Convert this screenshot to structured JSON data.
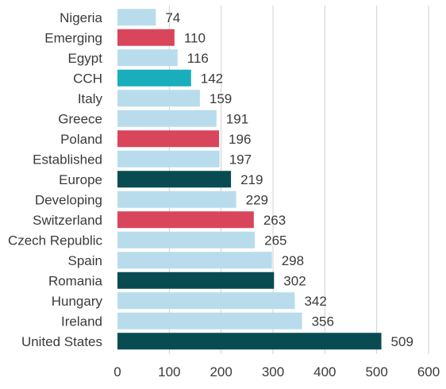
{
  "chart_data": {
    "type": "bar",
    "orientation": "horizontal",
    "categories": [
      "Nigeria",
      "Emerging",
      "Egypt",
      "CCH",
      "Italy",
      "Greece",
      "Poland",
      "Established",
      "Europe",
      "Developing",
      "Switzerland",
      "Czech Republic",
      "Spain",
      "Romania",
      "Hungary",
      "Ireland",
      "United States"
    ],
    "values": [
      74,
      110,
      116,
      142,
      159,
      191,
      196,
      197,
      219,
      229,
      263,
      265,
      298,
      302,
      342,
      356,
      509
    ],
    "value_labels": [
      "74",
      "110",
      "116",
      "142",
      "159",
      "191",
      "196",
      "197",
      "219",
      "229",
      "263",
      "265",
      "298",
      "302",
      "342",
      "356",
      "509"
    ],
    "bar_colors": [
      "#b8dcec",
      "#d9455a",
      "#b8dcec",
      "#1aaebc",
      "#b8dcec",
      "#b8dcec",
      "#d9455a",
      "#b8dcec",
      "#084c52",
      "#b8dcec",
      "#d9455a",
      "#b8dcec",
      "#b8dcec",
      "#084c52",
      "#b8dcec",
      "#b8dcec",
      "#084c52"
    ],
    "xlim": [
      0,
      600
    ],
    "xticks": [
      0,
      100,
      200,
      300,
      400,
      500,
      600
    ],
    "xtick_labels": [
      "0",
      "100",
      "200",
      "300",
      "400",
      "500",
      "600"
    ],
    "grid": "vertical",
    "title": "",
    "xlabel": "",
    "ylabel": ""
  }
}
